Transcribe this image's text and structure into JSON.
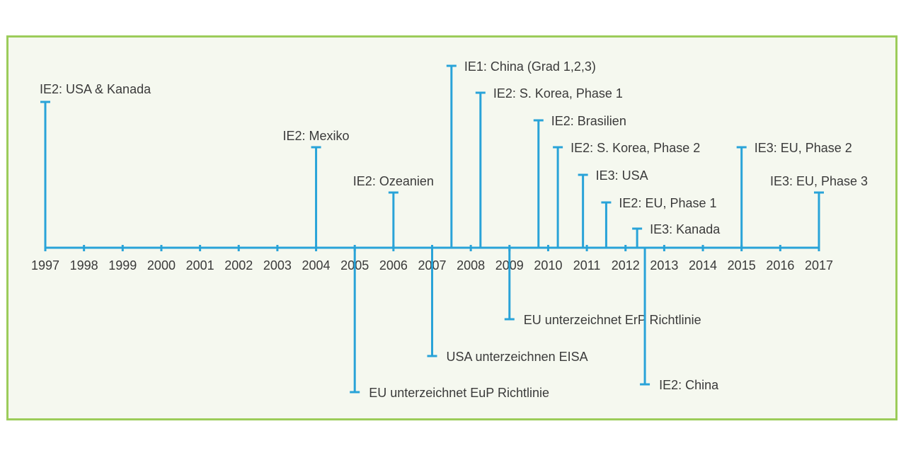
{
  "colors": {
    "frame_border": "#9ccc5a",
    "background": "#f5f8ef",
    "line": "#29a3d8",
    "text": "#3a3a3a"
  },
  "timeline": {
    "years": [
      "1997",
      "1998",
      "1999",
      "2000",
      "2001",
      "2002",
      "2003",
      "2004",
      "2005",
      "2006",
      "2007",
      "2008",
      "2009",
      "2010",
      "2011",
      "2012",
      "2013",
      "2014",
      "2015",
      "2016",
      "2017"
    ],
    "events_above": [
      {
        "year": 1997.0,
        "label": "IE2: USA & Kanada"
      },
      {
        "year": 2004.0,
        "label": "IE2: Mexiko"
      },
      {
        "year": 2006.0,
        "label": "IE2: Ozeanien"
      },
      {
        "year": 2007.5,
        "label": "IE1: China (Grad 1,2,3)"
      },
      {
        "year": 2008.25,
        "label": "IE2: S. Korea, Phase 1"
      },
      {
        "year": 2009.75,
        "label": "IE2: Brasilien"
      },
      {
        "year": 2010.25,
        "label": "IE2: S. Korea, Phase 2"
      },
      {
        "year": 2010.9,
        "label": "IE3: USA"
      },
      {
        "year": 2011.5,
        "label": "IE2: EU, Phase 1"
      },
      {
        "year": 2012.3,
        "label": "IE3: Kanada"
      },
      {
        "year": 2015.0,
        "label": "IE3: EU, Phase 2"
      },
      {
        "year": 2017.0,
        "label": "IE3: EU, Phase 3"
      }
    ],
    "events_below": [
      {
        "year": 2005.0,
        "label": "EU unterzeichnet EuP Richtlinie"
      },
      {
        "year": 2007.0,
        "label": "USA unterzeichnen EISA"
      },
      {
        "year": 2009.0,
        "label": "EU unterzeichnet ErP Richtlinie"
      },
      {
        "year": 2012.5,
        "label": "IE2: China"
      }
    ]
  }
}
